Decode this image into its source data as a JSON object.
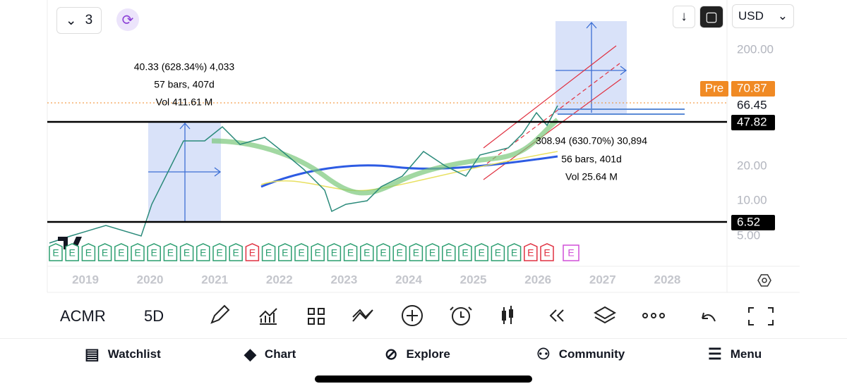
{
  "top_bar": {
    "interval_count": "3",
    "currency": "USD"
  },
  "measure_left": {
    "change": "40.33 (628.34%) 4,033",
    "bars": "57 bars, 407d",
    "volume": "Vol 411.61 M"
  },
  "measure_right": {
    "change": "308.94 (630.70%) 30,894",
    "bars": "56 bars, 401d",
    "volume": "Vol 25.64 M"
  },
  "price_axis": {
    "labels": [
      "200.00",
      "20.00",
      "10.00",
      "5.00"
    ],
    "tags": [
      {
        "label": "Pre",
        "value": "70.87"
      },
      {
        "value": "66.45"
      },
      {
        "value": "47.82"
      },
      {
        "value": "6.52"
      }
    ]
  },
  "time_axis": [
    "2019",
    "2020",
    "2021",
    "2022",
    "2023",
    "2024",
    "2025",
    "2026",
    "2027",
    "2028"
  ],
  "earnings_marker": "E",
  "toolbar": {
    "symbol": "ACMR",
    "interval": "5D"
  },
  "nav": [
    "Watchlist",
    "Chart",
    "Explore",
    "Community",
    "Menu"
  ]
}
